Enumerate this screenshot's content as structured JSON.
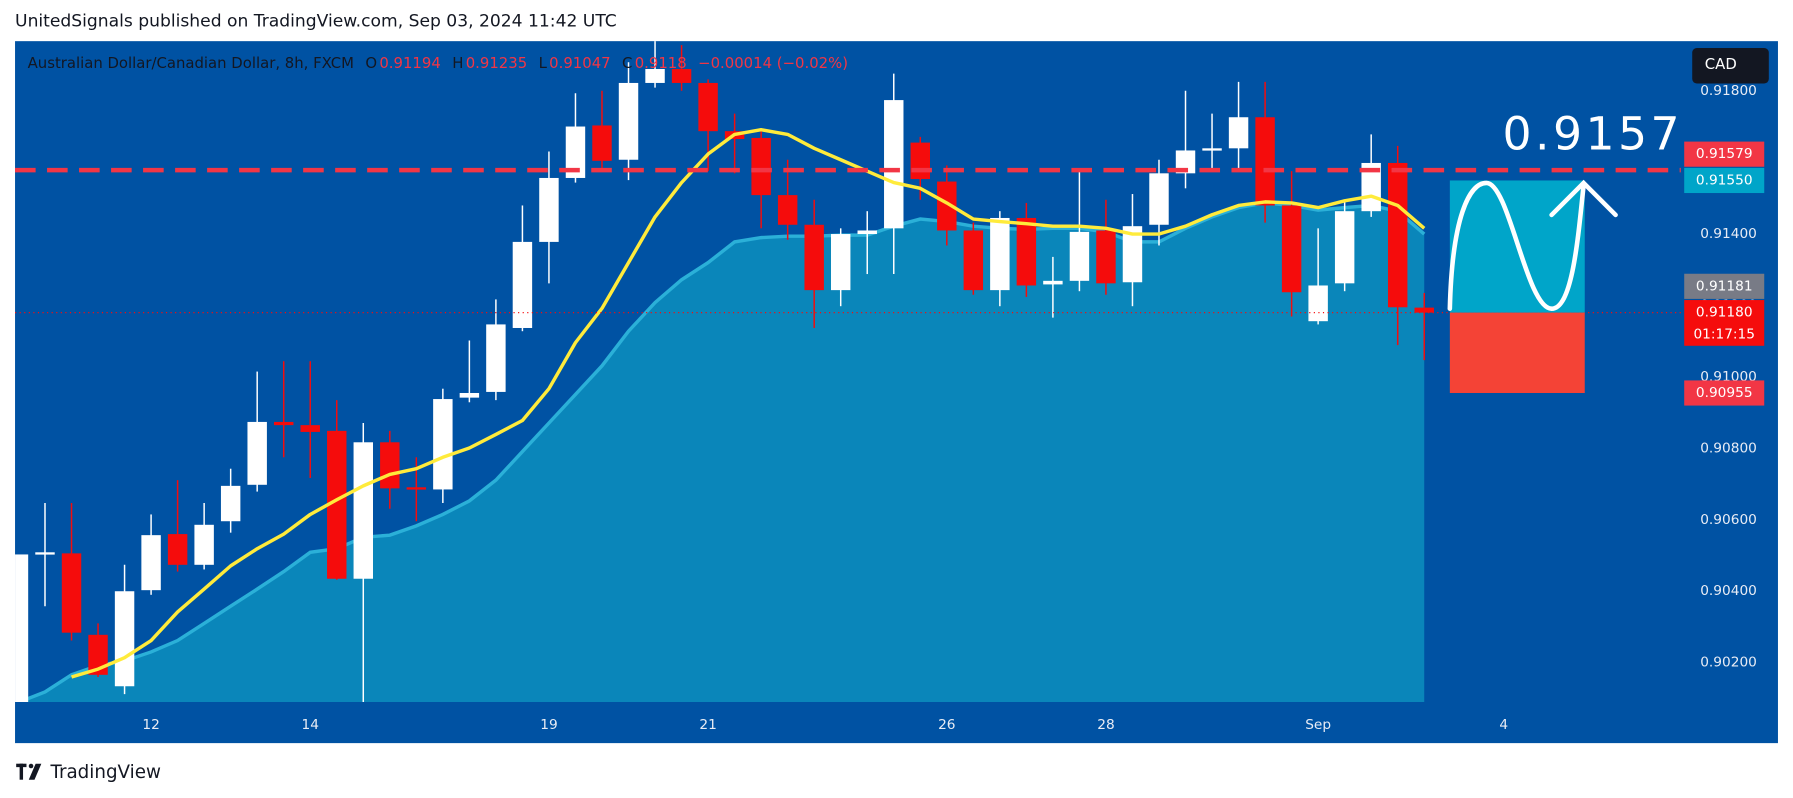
{
  "header": "UnitedSignals published on TradingView.com, Sep 03, 2024 11:42 UTC",
  "footer": "TradingView",
  "chart_data": {
    "type": "candlestick",
    "title": "Australian Dollar/Canadian Dollar, 8h, FXCM",
    "ohlc_keys": [
      "O",
      "H",
      "L",
      "C"
    ],
    "change": "−0.00014 (−0.02%)",
    "currency": "CAD",
    "annotation": "0.9157",
    "background": "#0052a3",
    "up_color": "#ffffff",
    "down_color": "#f50c0c",
    "categories": [
      null,
      null,
      null,
      null,
      null,
      "12",
      null,
      null,
      null,
      null,
      null,
      "14",
      null,
      null,
      null,
      null,
      null,
      null,
      null,
      null,
      "19",
      null,
      null,
      null,
      null,
      null,
      "21",
      null,
      null,
      null,
      null,
      null,
      null,
      null,
      null,
      "26",
      null,
      null,
      null,
      null,
      null,
      "28",
      null,
      null,
      null,
      null,
      null,
      null,
      null,
      "Sep",
      null,
      null,
      null,
      null,
      null,
      null,
      "4",
      null,
      null,
      null,
      null,
      null,
      null
    ],
    "open": [
      0.90089,
      0.90506,
      0.90506,
      0.90278,
      0.90134,
      0.90403,
      0.9056,
      0.90474,
      0.90596,
      0.90698,
      0.90874,
      0.90865,
      0.90849,
      0.90435,
      0.90817,
      0.90691,
      0.90685,
      0.90942,
      0.90958,
      0.91137,
      0.91378,
      0.91557,
      0.91704,
      0.91608,
      0.91823,
      0.91862,
      0.91823,
      0.91688,
      0.91669,
      0.91509,
      0.91426,
      0.91243,
      0.914,
      0.91416,
      0.91656,
      0.91547,
      0.9141,
      0.91243,
      0.91445,
      0.91259,
      0.91269,
      0.9141,
      0.91265,
      0.91426,
      0.9157,
      0.91637,
      0.9164,
      0.91727,
      0.9148,
      0.91156,
      0.91262,
      0.91464,
      0.91599,
      0.91194,
      null,
      null,
      null,
      null,
      null,
      null,
      null,
      null,
      null
    ],
    "high": [
      0.90503,
      0.90647,
      0.90647,
      0.9031,
      0.90474,
      0.90615,
      0.90711,
      0.90647,
      0.90743,
      0.91015,
      0.91044,
      0.91044,
      0.90935,
      0.90871,
      0.90849,
      0.90775,
      0.90967,
      0.91102,
      0.91217,
      0.9148,
      0.91631,
      0.91794,
      0.91801,
      0.91881,
      0.91942,
      0.91929,
      0.91833,
      0.91737,
      0.91688,
      0.91608,
      0.91496,
      0.91416,
      0.91464,
      0.91849,
      0.91672,
      0.91592,
      0.91432,
      0.91464,
      0.91487,
      0.91336,
      0.91583,
      0.91496,
      0.91512,
      0.91608,
      0.91801,
      0.91737,
      0.91826,
      0.91826,
      0.91576,
      0.91416,
      0.91496,
      0.91679,
      0.91647,
      0.91235,
      null,
      null,
      null,
      null,
      null,
      null,
      null,
      null,
      null
    ],
    "low": [
      0.90089,
      0.90358,
      0.90262,
      0.9016,
      0.90112,
      0.9039,
      0.90455,
      0.90461,
      0.90564,
      0.90679,
      0.90775,
      0.90717,
      0.90432,
      0.90089,
      0.90631,
      0.90596,
      0.90647,
      0.90929,
      0.90935,
      0.91128,
      0.91262,
      0.91544,
      0.91576,
      0.91551,
      0.9181,
      0.91801,
      0.91576,
      0.9157,
      0.91416,
      0.91384,
      0.91137,
      0.91198,
      0.91288,
      0.91288,
      0.91496,
      0.91368,
      0.9123,
      0.91198,
      0.91224,
      0.91166,
      0.9124,
      0.9123,
      0.91198,
      0.91368,
      0.91528,
      0.91576,
      0.91576,
      0.91432,
      0.91169,
      0.91147,
      0.9124,
      0.91448,
      0.91089,
      0.91047,
      null,
      null,
      null,
      null,
      null,
      null,
      null,
      null,
      null
    ],
    "close": [
      0.90503,
      0.90509,
      0.90284,
      0.90166,
      0.904,
      0.90557,
      0.90474,
      0.90586,
      0.90695,
      0.90874,
      0.90865,
      0.90846,
      0.90435,
      0.90817,
      0.90688,
      0.90688,
      0.90938,
      0.90955,
      0.91147,
      0.91378,
      0.91557,
      0.91701,
      0.91605,
      0.91823,
      0.91862,
      0.91823,
      0.91688,
      0.91666,
      0.91509,
      0.91426,
      0.91243,
      0.914,
      0.9141,
      0.91775,
      0.91554,
      0.9141,
      0.91243,
      0.91445,
      0.91256,
      0.91269,
      0.91406,
      0.91262,
      0.91422,
      0.9157,
      0.91634,
      0.9164,
      0.91727,
      0.9148,
      0.91237,
      0.91256,
      0.91464,
      0.91599,
      0.91195,
      0.9118,
      null,
      null,
      null,
      null,
      null,
      null,
      null,
      null,
      null
    ],
    "series": [
      {
        "style": "area",
        "color": "#2bb0d8",
        "fill": "#0a86ba",
        "values": [
          0.90089,
          0.90118,
          0.90166,
          0.90192,
          0.90205,
          0.9023,
          0.90262,
          0.9031,
          0.90358,
          0.90406,
          0.90455,
          0.90509,
          0.90519,
          0.90551,
          0.90557,
          0.90583,
          0.90615,
          0.90653,
          0.90711,
          0.90791,
          0.90871,
          0.90951,
          0.91031,
          0.91128,
          0.91208,
          0.91272,
          0.9132,
          0.91378,
          0.9139,
          0.91394,
          0.91394,
          0.91397,
          0.91397,
          0.91422,
          0.91442,
          0.91435,
          0.91422,
          0.91416,
          0.91413,
          0.91416,
          0.91416,
          0.91406,
          0.91378,
          0.91378,
          0.91416,
          0.91448,
          0.91474,
          0.91487,
          0.9148,
          0.91467,
          0.91474,
          0.9148,
          0.91464,
          0.914,
          null,
          null,
          null,
          null,
          null,
          null,
          null,
          null,
          null
        ]
      },
      {
        "style": "line",
        "color": "#ffeb3b",
        "values": [
          null,
          null,
          0.9016,
          0.90182,
          0.90214,
          0.90262,
          0.90342,
          0.90406,
          0.90471,
          0.90519,
          0.9056,
          0.90615,
          0.90656,
          0.90695,
          0.90727,
          0.90743,
          0.90775,
          0.90801,
          0.90839,
          0.90878,
          0.90967,
          0.91096,
          0.91192,
          0.9132,
          0.91448,
          0.91544,
          0.91624,
          0.91679,
          0.91692,
          0.91679,
          0.9164,
          0.91608,
          0.91576,
          0.91544,
          0.91528,
          0.91487,
          0.91442,
          0.91435,
          0.91429,
          0.91422,
          0.91422,
          0.91416,
          0.914,
          0.914,
          0.91422,
          0.91454,
          0.9148,
          0.9149,
          0.91487,
          0.91474,
          0.91493,
          0.91506,
          0.9148,
          0.91416,
          null,
          null,
          null,
          null,
          null,
          null,
          null,
          null,
          null
        ]
      }
    ],
    "ylim": [
      0.9009,
      0.9194
    ],
    "yticks": [
      {
        "value": 0.902,
        "label": "0.90200"
      },
      {
        "value": 0.904,
        "label": "0.90400"
      },
      {
        "value": 0.906,
        "label": "0.90600"
      },
      {
        "value": 0.908,
        "label": "0.90800"
      },
      {
        "value": 0.91,
        "label": "0.91000"
      },
      {
        "value": 0.912,
        "label": "0.91200"
      },
      {
        "value": 0.914,
        "label": "0.91400"
      },
      {
        "value": 0.916,
        "label": "0.91600"
      },
      {
        "value": 0.918,
        "label": "0.91800"
      }
    ],
    "price_labels": [
      {
        "value": 0.91579,
        "color": "#f23645",
        "line": "dashed"
      },
      {
        "value": 0.9155,
        "label": "0.91550",
        "color": "#00a5c9"
      },
      {
        "value": 0.91181,
        "color": "#787b86"
      },
      {
        "value": 0.9118,
        "label": "0.91180",
        "color": "#f50c0c",
        "line": "dotted",
        "countdown": "01:17:15"
      },
      {
        "value": 0.90955,
        "color": "#f23645"
      }
    ],
    "position": {
      "profit_color": "#00a5c9",
      "loss_color": "#f44336"
    }
  }
}
